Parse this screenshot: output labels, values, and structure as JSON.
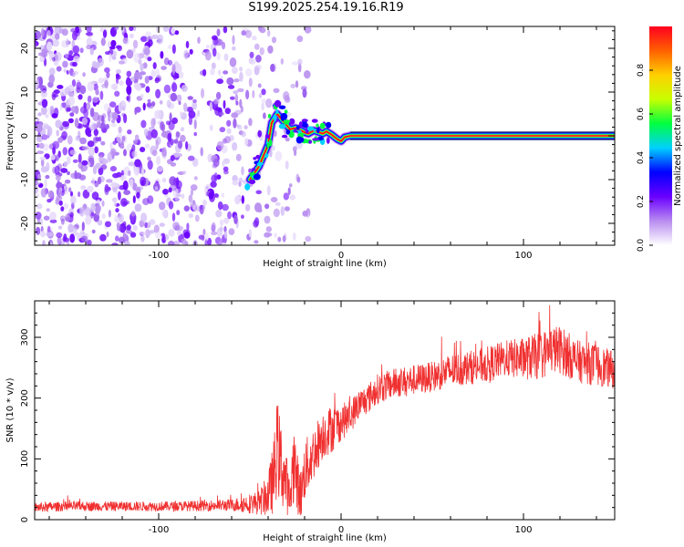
{
  "title": "S199.2025.254.19.16.R19",
  "chart_data": [
    {
      "type": "heatmap",
      "title": "S199.2025.254.19.16.R19",
      "xlabel": "Height of straight line (km)",
      "ylabel": "Frequency (Hz)",
      "xlim": [
        -168,
        150
      ],
      "ylim": [
        -25,
        25
      ],
      "xticks": [
        -100,
        0,
        100
      ],
      "yticks": [
        -20,
        -10,
        0,
        10,
        20
      ],
      "colorbar": {
        "label": "Normalized spectral amplitude",
        "range": [
          0,
          1
        ],
        "ticks": [
          "0.0",
          "0.2",
          "0.4",
          "0.6",
          "0.8"
        ],
        "colors": [
          "#ffffff",
          "#b88cf0",
          "#6a00ff",
          "#0000ff",
          "#00d0ff",
          "#00ff40",
          "#c8ff00",
          "#ffd000",
          "#ff6000",
          "#ff0020"
        ]
      },
      "ridge": {
        "x": [
          -50,
          -45,
          -40,
          -38,
          -35,
          -32,
          -30,
          -28,
          -25,
          -22,
          -20,
          -18,
          -15,
          -12,
          -10,
          -8,
          -5,
          -2,
          0,
          2,
          5,
          10,
          20,
          40,
          60,
          80,
          100,
          120,
          150
        ],
        "freq": [
          -10,
          -7,
          -2,
          3,
          5,
          3.5,
          2.5,
          1.5,
          1.8,
          1.2,
          0.8,
          0.5,
          1.2,
          0.8,
          0.5,
          1.0,
          0.2,
          -0.8,
          -1.2,
          -0.3,
          0.0,
          0.0,
          0.0,
          0.0,
          0.0,
          0.0,
          0.0,
          0.0,
          0.0
        ]
      }
    },
    {
      "type": "line",
      "xlabel": "Height of straight line (km)",
      "ylabel": "SNR (10 * v/v)",
      "xlim": [
        -168,
        150
      ],
      "ylim": [
        0,
        360
      ],
      "xticks": [
        -100,
        0,
        100
      ],
      "yticks": [
        0,
        100,
        200,
        300
      ],
      "color": "#f03030",
      "series": [
        {
          "name": "SNR",
          "x": [
            -168,
            -150,
            -120,
            -90,
            -60,
            -45,
            -40,
            -37,
            -35,
            -33,
            -30,
            -28,
            -26,
            -24,
            -22,
            -20,
            -15,
            -10,
            -5,
            0,
            5,
            10,
            15,
            20,
            30,
            40,
            50,
            60,
            70,
            80,
            90,
            100,
            110,
            115,
            120,
            125,
            130,
            140,
            150
          ],
          "values": [
            20,
            22,
            22,
            22,
            24,
            28,
            40,
            70,
            120,
            90,
            60,
            30,
            100,
            60,
            40,
            80,
            110,
            140,
            150,
            160,
            170,
            190,
            200,
            215,
            225,
            230,
            235,
            245,
            250,
            255,
            265,
            265,
            270,
            280,
            280,
            270,
            260,
            255,
            245
          ],
          "spread": [
            8,
            8,
            8,
            8,
            10,
            20,
            35,
            60,
            80,
            70,
            50,
            30,
            70,
            50,
            40,
            50,
            45,
            40,
            40,
            30,
            28,
            25,
            25,
            25,
            25,
            25,
            25,
            28,
            28,
            30,
            30,
            35,
            40,
            40,
            40,
            38,
            35,
            35,
            30
          ]
        }
      ]
    }
  ]
}
